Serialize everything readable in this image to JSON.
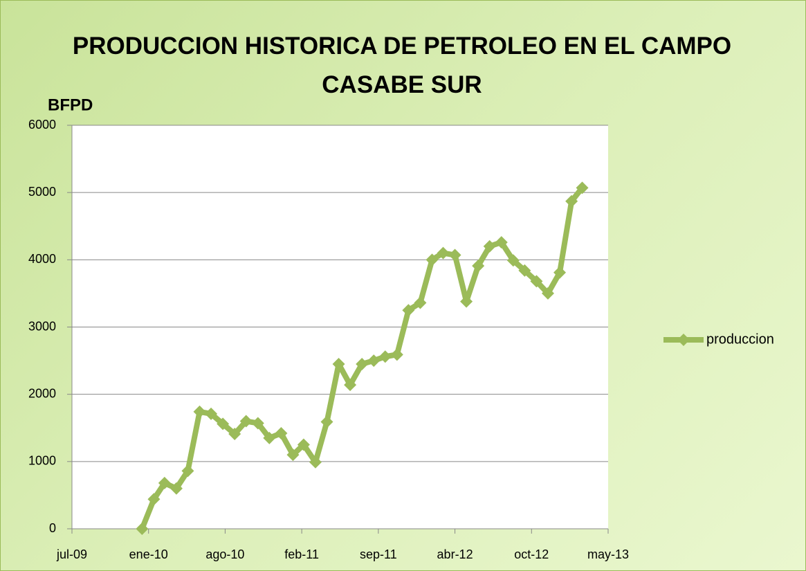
{
  "chart_data": {
    "type": "line",
    "title": "PRODUCCION HISTORICA DE PETROLEO EN EL CAMPO CASABE SUR",
    "y_label": "BFPD",
    "x": [
      "2010-01",
      "2010-02",
      "2010-03",
      "2010-04",
      "2010-05",
      "2010-06",
      "2010-07",
      "2010-08",
      "2010-09",
      "2010-10",
      "2010-11",
      "2010-12",
      "2011-01",
      "2011-02",
      "2011-03",
      "2011-04",
      "2011-05",
      "2011-06",
      "2011-07",
      "2011-08",
      "2011-09",
      "2011-10",
      "2011-11",
      "2011-12",
      "2012-01",
      "2012-02",
      "2012-03",
      "2012-04",
      "2012-05",
      "2012-06",
      "2012-07",
      "2012-08",
      "2012-09",
      "2012-10",
      "2012-11",
      "2012-12",
      "2013-01",
      "2013-02",
      "2013-03"
    ],
    "series": [
      {
        "name": "produccion",
        "color": "#9bbb59",
        "values": [
          0,
          440,
          680,
          600,
          860,
          1740,
          1710,
          1560,
          1410,
          1600,
          1570,
          1350,
          1420,
          1100,
          1250,
          990,
          1590,
          2450,
          2140,
          2450,
          2500,
          2560,
          2590,
          3250,
          3360,
          4000,
          4100,
          4070,
          3380,
          3910,
          4200,
          4260,
          3990,
          3840,
          3680,
          3500,
          3810,
          4870,
          5070
        ]
      }
    ],
    "xlim": [
      "2009-07-01",
      "2013-05-08"
    ],
    "xticks": [
      {
        "value": "2009-07-01",
        "label": "jul-09"
      },
      {
        "value": "2010-01-18",
        "label": "ene-10"
      },
      {
        "value": "2010-08-07",
        "label": "ago-10"
      },
      {
        "value": "2011-02-24",
        "label": "feb-11"
      },
      {
        "value": "2011-09-13",
        "label": "sep-11"
      },
      {
        "value": "2012-04-01",
        "label": "abr-12"
      },
      {
        "value": "2012-10-19",
        "label": "oct-12"
      },
      {
        "value": "2013-05-08",
        "label": "may-13"
      }
    ],
    "ylim": [
      0,
      6000
    ],
    "yticks": [
      0,
      1000,
      2000,
      3000,
      4000,
      5000,
      6000
    ],
    "grid": true,
    "legend": "right"
  }
}
